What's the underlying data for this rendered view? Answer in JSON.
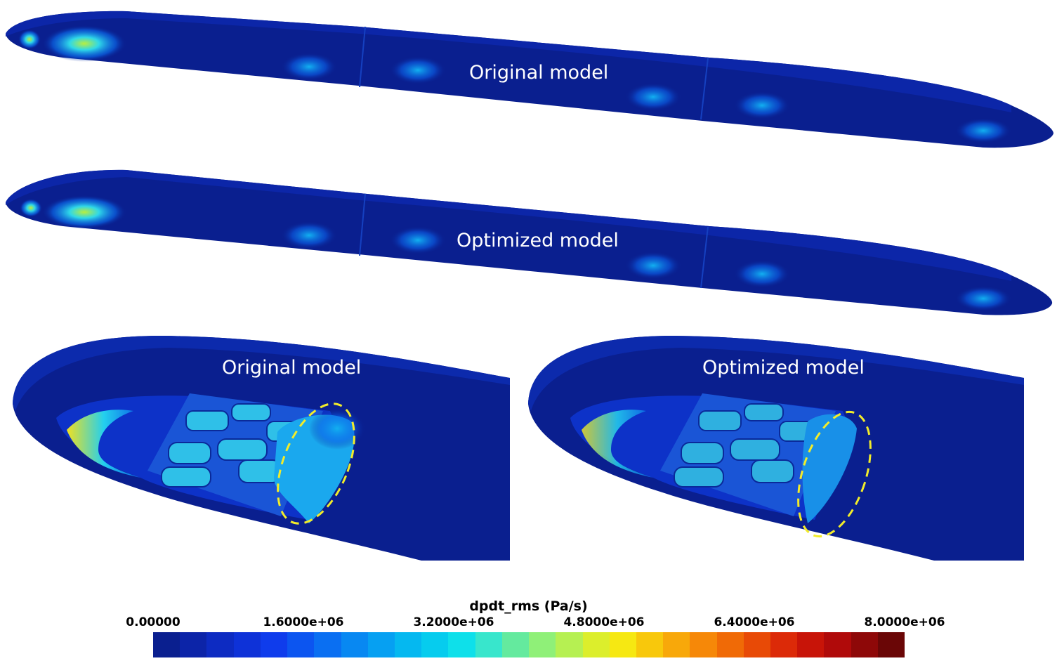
{
  "panels": [
    {
      "id": "full-original",
      "label": "Original model"
    },
    {
      "id": "full-optimized",
      "label": "Optimized model"
    },
    {
      "id": "zoom-original",
      "label": "Original model"
    },
    {
      "id": "zoom-optimized",
      "label": "Optimized model"
    }
  ],
  "colorbar": {
    "title": "dpdt_rms (Pa/s)",
    "ticks": [
      "0.00000",
      "1.6000e+06",
      "3.2000e+06",
      "4.8000e+06",
      "6.4000e+06",
      "8.0000e+06"
    ],
    "range": [
      0,
      8000000
    ],
    "colors": [
      "#0a1f8f",
      "#0c24a8",
      "#0d2bc2",
      "#0e32d8",
      "#0f3cec",
      "#0c55f0",
      "#0a6ff2",
      "#0888f2",
      "#06a0f2",
      "#05b8f0",
      "#06ccee",
      "#0ee0ea",
      "#38e6cc",
      "#64ea9e",
      "#8ff078",
      "#b6f052",
      "#dcee2c",
      "#f6e812",
      "#f8c80c",
      "#f8a80a",
      "#f68808",
      "#f06a06",
      "#e84a06",
      "#dc2a08",
      "#c81408",
      "#b00a0a",
      "#8e0808",
      "#6a0606"
    ]
  },
  "annotation_color": "#f2ec2a",
  "field_base_color": "#0a1f8f"
}
